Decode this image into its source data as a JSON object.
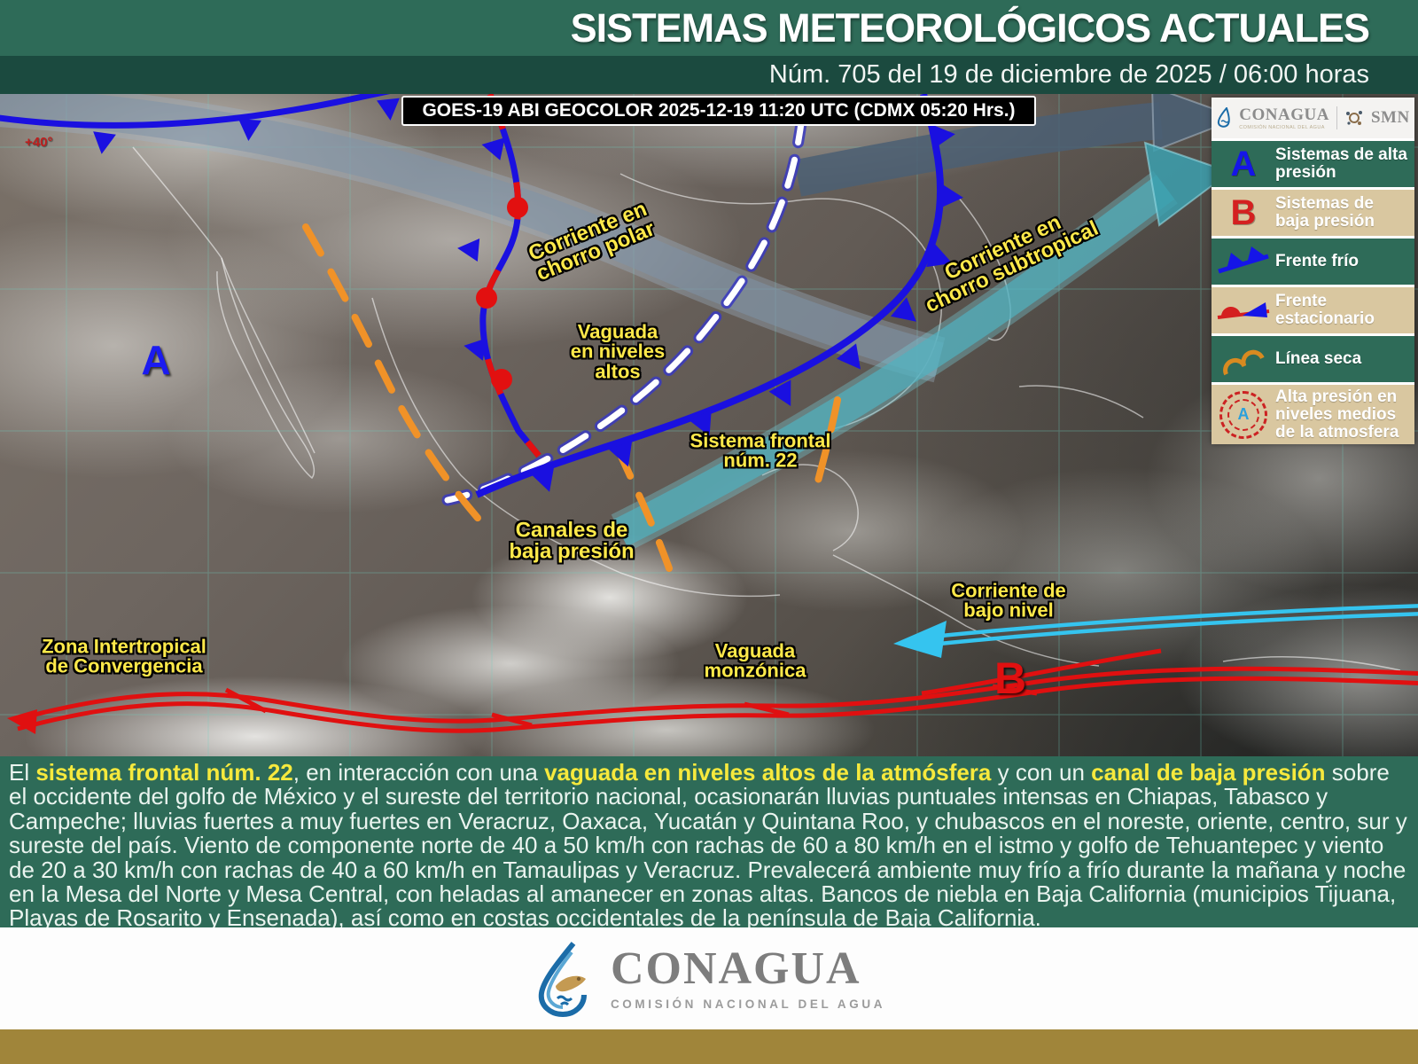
{
  "header": {
    "title": "SISTEMAS METEOROLÓGICOS ACTUALES",
    "subtitle": "Núm. 705 del 19 de diciembre de 2025 / 06:00 horas"
  },
  "map": {
    "caption": "GOES-19 ABI GEOCOLOR 2025-12-19 11:20 UTC (CDMX  05:20 Hrs.)",
    "marker_high": "A",
    "marker_low": "B",
    "lat_label": "+40°",
    "annotations": [
      {
        "id": "polar_jet",
        "text": "Corriente en\nchorro polar"
      },
      {
        "id": "subtropical_jet",
        "text": "Corriente en\nchorro subtropical"
      },
      {
        "id": "vaguada_altos",
        "text": "Vaguada\nen niveles\naltos"
      },
      {
        "id": "sistema_frontal",
        "text": "Sistema frontal\nnúm. 22"
      },
      {
        "id": "canales",
        "text": "Canales de\nbaja presión"
      },
      {
        "id": "corriente_bajo",
        "text": "Corriente de\nbajo nivel"
      },
      {
        "id": "zona_itcz",
        "text": "Zona Intertropical\nde Convergencia"
      },
      {
        "id": "vaguada_monzonica",
        "text": "Vaguada\nmonzónica"
      }
    ]
  },
  "legend": {
    "logo_left": "CONAGUA",
    "logo_left_sub": "COMISIÓN NACIONAL DEL AGUA",
    "logo_right": "SMN",
    "items": [
      {
        "symbol": "high-pressure-a",
        "label": "Sistemas de alta presión"
      },
      {
        "symbol": "low-pressure-b",
        "label": "Sistemas de baja presión"
      },
      {
        "symbol": "cold-front",
        "label": "Frente frío"
      },
      {
        "symbol": "stationary-front",
        "label": "Frente estacionario"
      },
      {
        "symbol": "dry-line",
        "label": "Línea seca"
      },
      {
        "symbol": "mid-level-high",
        "label": "Alta presión en niveles medios de la atmosfera"
      }
    ]
  },
  "description": {
    "segments": [
      {
        "text": "El ",
        "h": false
      },
      {
        "text": "sistema frontal núm. 22",
        "h": true
      },
      {
        "text": ", en interacción con una ",
        "h": false
      },
      {
        "text": "vaguada en niveles altos de la atmósfera",
        "h": true
      },
      {
        "text": " y con un ",
        "h": false
      },
      {
        "text": "canal de baja presión",
        "h": true
      },
      {
        "text": " sobre el occidente del golfo de México y el sureste del territorio nacional, ocasionarán lluvias puntuales intensas en Chiapas, Tabasco y Campeche; lluvias fuertes a muy fuertes en Veracruz, Oaxaca, Yucatán y Quintana Roo, y chubascos en el noreste, oriente, centro, sur y sureste del país. Viento de componente norte de 40 a 50 km/h con rachas de 60 a 80 km/h en el istmo y golfo de Tehuantepec y viento de 20 a 30 km/h con rachas de 40 a 60 km/h en Tamaulipas y Veracruz. Prevalecerá ambiente muy frío a frío durante la mañana y noche en la Mesa del Norte y Mesa Central, con heladas al amanecer en zonas altas. Bancos de niebla en Baja California (municipios Tijuana, Playas de Rosarito y Ensenada), así como en costas occidentales de la península de Baja California.",
        "h": false
      }
    ]
  },
  "footer": {
    "logo_text": "CONAGUA",
    "logo_subtext": "COMISIÓN NACIONAL DEL AGUA"
  },
  "colors": {
    "header_green": "#2e6b58",
    "dark_green": "#1b4a3f",
    "gold_bar": "#a0853a",
    "highlight_yellow": "#f6e93d",
    "annotation_yellow": "#ffe94a",
    "cold_front_blue": "#1a10e0",
    "warm_red": "#e01010",
    "dry_line_orange": "#f09228",
    "low_level_cyan": "#35c4ef",
    "legend_tan": "#d9c7a0"
  }
}
